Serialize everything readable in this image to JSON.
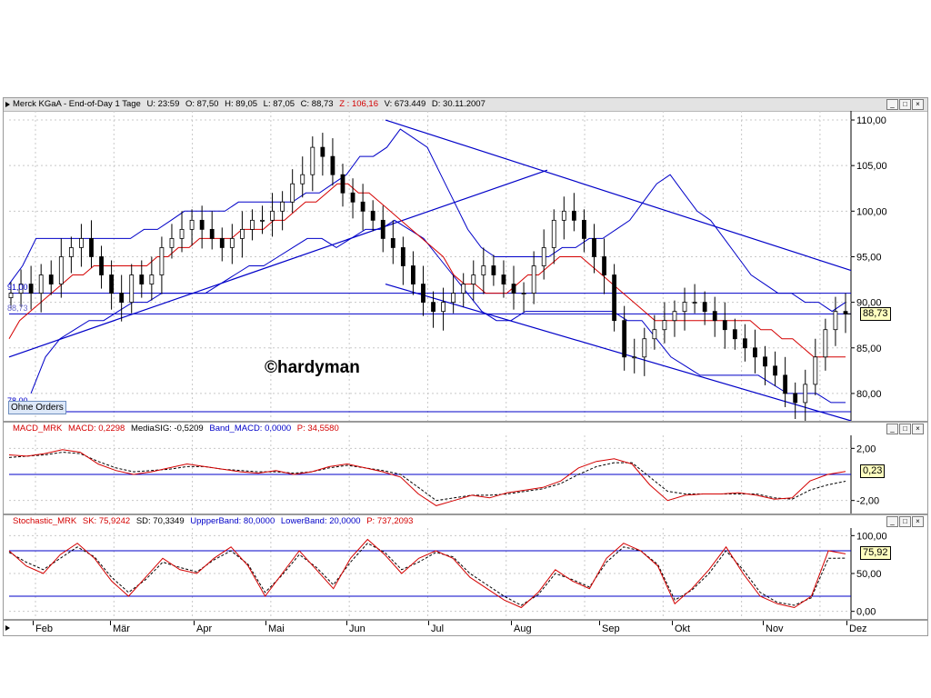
{
  "main": {
    "name": "Merck KGaA - End-of-Day 1 Tage",
    "U": "U: 23:59",
    "O": "O: 87,50",
    "H": "H: 89,05",
    "L": "L: 87,05",
    "C": "C: 88,73",
    "Z": "Z : 106,16",
    "V": "V: 673.449",
    "D": "D: 30.11.2007",
    "price_label": "88,73",
    "level_high": "91,00",
    "level_mid": "88,73",
    "level_low": "78,00",
    "orders_button": "Ohne Orders",
    "watermark": "©hardyman",
    "y_ticks": [
      "110,00",
      "105,00",
      "100,00",
      "95,00",
      "90,00",
      "85,00",
      "80,00"
    ]
  },
  "macd": {
    "name": "MACD_MRK",
    "macd": "MACD: 0,2298",
    "signal": "MediaSIG: -0,5209",
    "band": "Band_MACD: 0,0000",
    "p": "P: 34,5580",
    "value_label": "0,23",
    "y_ticks": [
      "2,00",
      "-2,00"
    ]
  },
  "stoch": {
    "name": "Stochastic_MRK",
    "sk": "SK: 75,9242",
    "sd": "SD: 70,3349",
    "upper": "UppperBand: 80,0000",
    "lower": "LowerBand: 20,0000",
    "p": "P: 737,2093",
    "value_label": "75,92",
    "y_ticks": [
      "100,00",
      "50,00",
      "0,00"
    ]
  },
  "months": [
    "Feb",
    "Mär",
    "Apr",
    "Mai",
    "Jun",
    "Jul",
    "Aug",
    "Sep",
    "Okt",
    "Nov",
    "Dez"
  ],
  "colors": {
    "price": "#000000",
    "ma": "#d40000",
    "bands": "#0000c8",
    "signal": "#000000"
  },
  "chart_data": [
    {
      "type": "line",
      "title": "Merck KGaA - End-of-Day 1 Tage",
      "ylim": [
        77,
        111
      ],
      "y_ticks": [
        80,
        85,
        90,
        95,
        100,
        105,
        110
      ],
      "months": [
        "Feb",
        "Mär",
        "Apr",
        "Mai",
        "Jun",
        "Jul",
        "Aug",
        "Sep",
        "Okt",
        "Nov",
        "Dez"
      ],
      "series": [
        {
          "name": "C",
          "style": "candlestick",
          "values": [
            91,
            92,
            91,
            93,
            92,
            95,
            96,
            97,
            95,
            93,
            91,
            90,
            93,
            92,
            93,
            96,
            97,
            98,
            99,
            98,
            97,
            96,
            97,
            98,
            99,
            99,
            100,
            101,
            103,
            104,
            107,
            106,
            104,
            102,
            101,
            100,
            99,
            97,
            96,
            94,
            92,
            90,
            89,
            90,
            91,
            92,
            93,
            94,
            93,
            92,
            91,
            91,
            94,
            96,
            99,
            100,
            99,
            97,
            95,
            93,
            88,
            84,
            84,
            86,
            87,
            88,
            89,
            90,
            90,
            89,
            88,
            87,
            86,
            85,
            84,
            83,
            82,
            80,
            79,
            81,
            84,
            87,
            89,
            88.73
          ]
        },
        {
          "name": "",
          "style": "moving-average",
          "values": [
            86,
            88,
            89,
            90,
            91,
            92,
            93,
            93,
            94,
            94,
            94,
            94,
            94,
            94,
            95,
            95,
            96,
            96,
            97,
            97,
            97,
            97,
            98,
            98,
            98,
            99,
            99,
            100,
            101,
            101,
            102,
            103,
            103,
            102,
            102,
            101,
            100,
            99,
            98,
            97,
            96,
            95,
            93,
            92,
            92,
            91,
            91,
            91,
            92,
            93,
            93,
            94,
            95,
            95,
            95,
            94,
            93,
            92,
            91,
            90,
            89,
            88,
            88,
            88,
            88,
            88,
            88,
            88,
            88,
            88,
            88,
            87,
            87,
            86,
            86,
            85,
            84,
            84,
            84,
            84
          ]
        },
        {
          "name": "",
          "style": "bollinger-upper",
          "values": [
            92,
            94,
            97,
            97,
            97,
            97,
            97,
            97,
            97,
            97,
            98,
            98,
            99,
            100,
            100,
            100,
            100,
            101,
            101,
            101,
            101,
            101,
            102,
            102,
            103,
            104,
            106,
            106,
            107,
            109,
            108,
            107,
            104,
            101,
            98,
            96,
            95,
            95,
            95,
            95,
            95,
            96,
            96,
            97,
            97,
            98,
            99,
            101,
            103,
            104,
            102,
            100,
            99,
            97,
            95,
            93,
            92,
            91,
            91,
            90,
            90,
            89,
            90
          ]
        },
        {
          "name": "",
          "style": "bollinger-lower",
          "values": [
            80,
            84,
            86,
            87,
            88,
            88,
            89,
            90,
            90,
            91,
            91,
            91,
            91,
            92,
            93,
            94,
            94,
            95,
            96,
            97,
            97,
            96,
            97,
            98,
            98,
            99,
            98,
            97,
            95,
            93,
            91,
            89,
            88,
            88,
            89,
            89,
            89,
            89,
            89,
            89,
            89,
            88,
            88,
            86,
            84,
            83,
            82,
            82,
            82,
            82,
            82,
            81,
            80,
            80,
            80,
            79,
            79
          ]
        },
        {
          "name": "",
          "style": "trend-lines",
          "values": [
            110,
            93.5,
            92,
            77
          ]
        },
        {
          "name": "",
          "style": "horizontal-levels",
          "values": [
            91,
            88.73,
            78
          ]
        }
      ]
    },
    {
      "type": "line",
      "title": "MACD_MRK",
      "ylim": [
        -3,
        3
      ],
      "y_ticks": [
        2,
        -2
      ],
      "series": [
        {
          "name": "MACD",
          "values": [
            1.5,
            1.4,
            1.6,
            1.9,
            1.7,
            0.8,
            0.3,
            0.0,
            0.2,
            0.5,
            0.8,
            0.6,
            0.4,
            0.2,
            0.1,
            0.3,
            0.0,
            0.2,
            0.6,
            0.8,
            0.5,
            0.2,
            -0.2,
            -1.5,
            -2.4,
            -2.0,
            -1.6,
            -1.8,
            -1.4,
            -1.2,
            -1.0,
            -0.5,
            0.5,
            1.0,
            1.2,
            0.8,
            -0.8,
            -2.0,
            -1.6,
            -1.5,
            -1.5,
            -1.4,
            -1.6,
            -1.9,
            -1.8,
            -0.5,
            0.0,
            0.23
          ]
        },
        {
          "name": "MediaSIG",
          "values": [
            1.3,
            1.4,
            1.5,
            1.7,
            1.6,
            1.0,
            0.5,
            0.2,
            0.3,
            0.4,
            0.6,
            0.6,
            0.4,
            0.3,
            0.2,
            0.2,
            0.1,
            0.2,
            0.5,
            0.7,
            0.5,
            0.3,
            0.0,
            -1.0,
            -2.0,
            -1.8,
            -1.6,
            -1.6,
            -1.5,
            -1.3,
            -1.1,
            -0.7,
            0.0,
            0.6,
            0.9,
            0.9,
            -0.2,
            -1.3,
            -1.5,
            -1.5,
            -1.5,
            -1.5,
            -1.5,
            -1.8,
            -1.9,
            -1.2,
            -0.8,
            -0.52
          ]
        },
        {
          "name": "Band_MACD",
          "values": [
            0
          ]
        }
      ]
    },
    {
      "type": "line",
      "title": "Stochastic_MRK",
      "ylim": [
        -10,
        110
      ],
      "y_ticks": [
        0,
        50,
        100
      ],
      "series": [
        {
          "name": "SK",
          "values": [
            80,
            60,
            50,
            75,
            90,
            70,
            40,
            20,
            45,
            70,
            55,
            50,
            70,
            85,
            60,
            20,
            50,
            80,
            55,
            30,
            70,
            95,
            75,
            50,
            70,
            80,
            70,
            45,
            30,
            15,
            5,
            25,
            55,
            40,
            30,
            70,
            90,
            80,
            60,
            10,
            30,
            55,
            85,
            50,
            20,
            10,
            5,
            20,
            80,
            75.92
          ]
        },
        {
          "name": "SD",
          "values": [
            78,
            65,
            55,
            70,
            85,
            72,
            45,
            25,
            42,
            65,
            58,
            52,
            68,
            80,
            62,
            25,
            48,
            75,
            58,
            35,
            65,
            90,
            78,
            55,
            65,
            78,
            72,
            50,
            35,
            20,
            8,
            22,
            50,
            42,
            32,
            65,
            85,
            80,
            62,
            15,
            28,
            50,
            80,
            55,
            25,
            12,
            8,
            18,
            70,
            70.33
          ]
        },
        {
          "name": "UppperBand",
          "values": [
            80
          ]
        },
        {
          "name": "LowerBand",
          "values": [
            20
          ]
        }
      ]
    }
  ]
}
